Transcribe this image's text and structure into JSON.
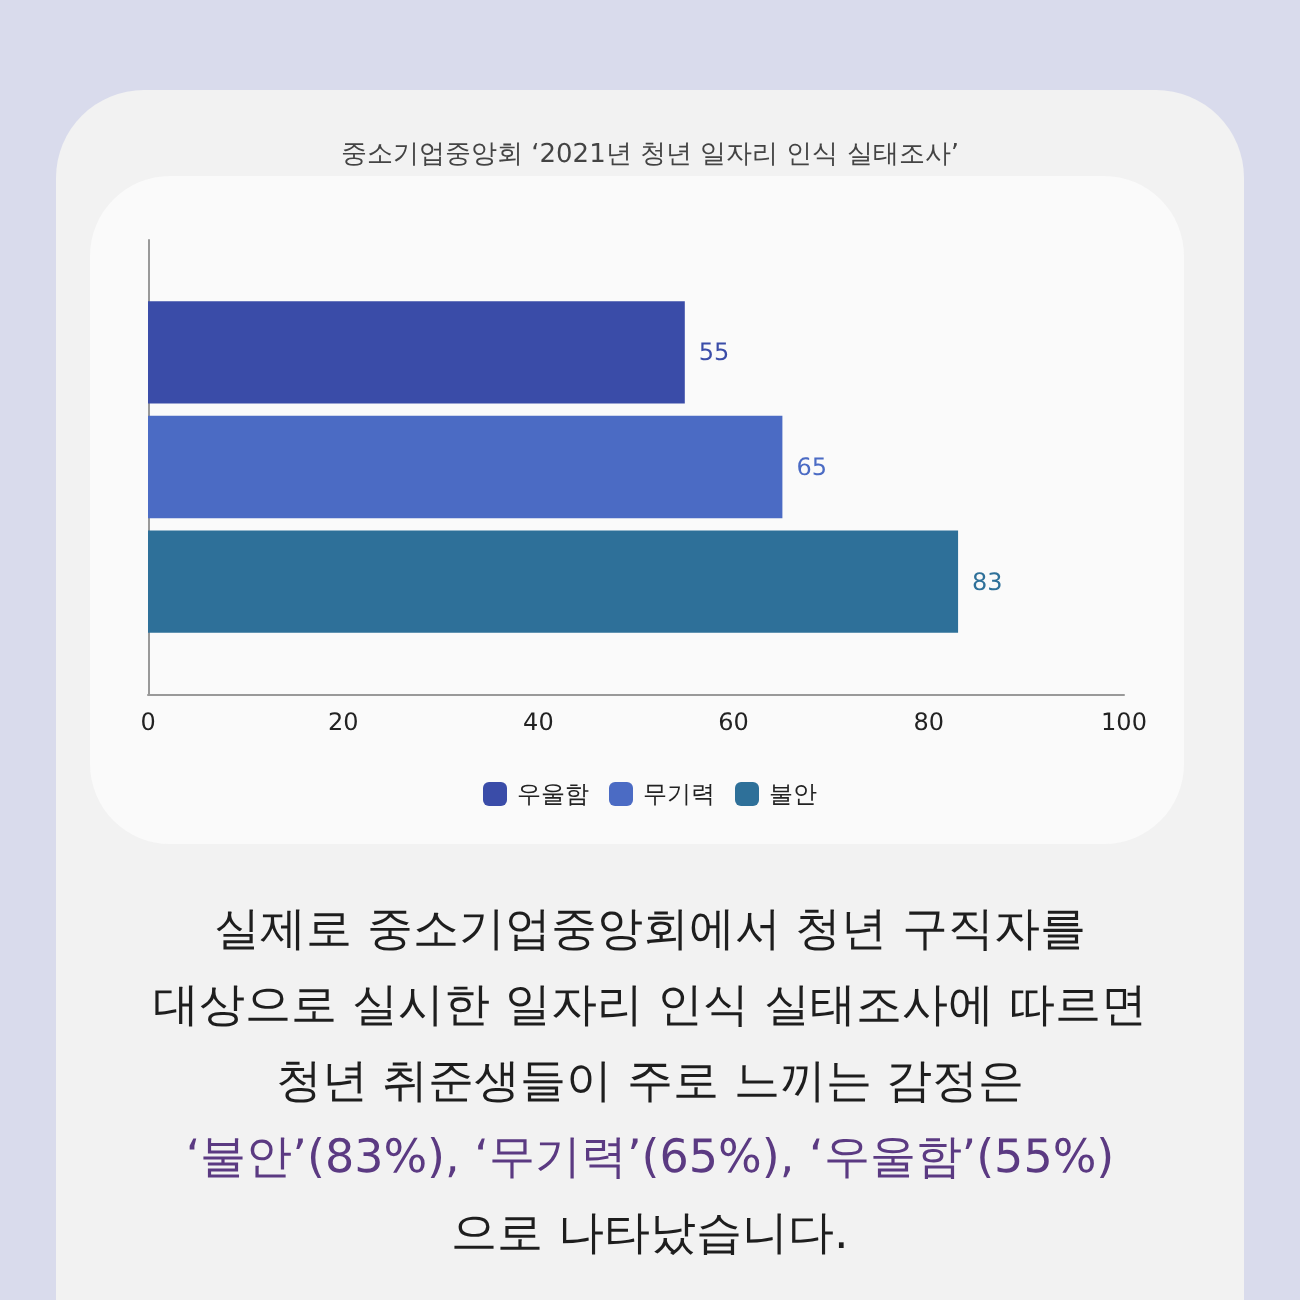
{
  "chart_data": {
    "type": "bar",
    "orientation": "horizontal",
    "title": "중소기업중앙회 ‘2021년 청년 일자리 인식 실태조사’",
    "categories": [
      null
    ],
    "series": [
      {
        "name": "우울함",
        "color": "#3a4ca8",
        "values": [
          55
        ]
      },
      {
        "name": "무기력",
        "color": "#4b6bc4",
        "values": [
          65
        ]
      },
      {
        "name": "불안",
        "color": "#2e7099",
        "values": [
          83
        ]
      }
    ],
    "xlim": [
      0,
      100
    ],
    "xticks": [
      0,
      20,
      40,
      60,
      80,
      100
    ],
    "data_labels": true,
    "legend": "bottom",
    "grid": false,
    "tick_labels": "x",
    "annotations": [
      "실제로 중소기업중앙회에서 청년 구직자를",
      "대상으로 실시한 일자리 인식 실태조사에 따르면",
      "청년 취준생들이 주로 느끼는 감정은",
      "‘불안’(83%), ‘무기력’(65%), ‘우울함’(55%)",
      "으로 나타났습니다."
    ]
  }
}
